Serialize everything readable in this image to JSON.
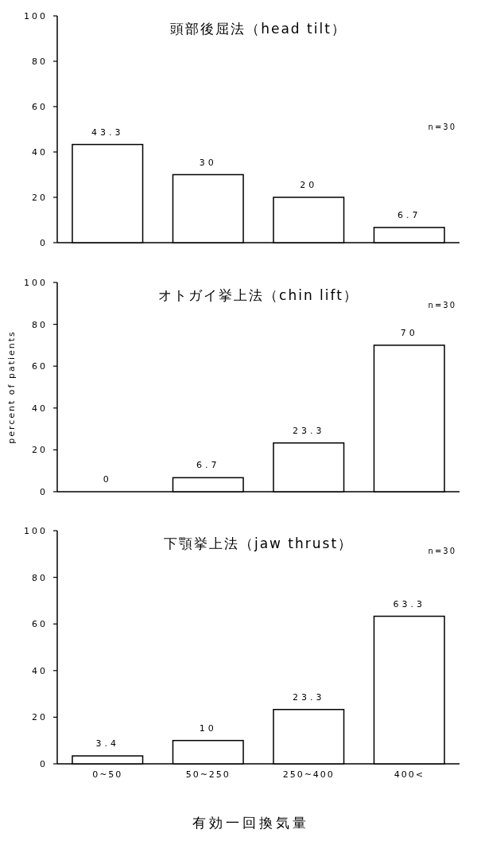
{
  "chart_data": [
    {
      "type": "bar",
      "title": "頭部後屈法（head tilt）",
      "categories": [
        null,
        null,
        null,
        null
      ],
      "values": [
        43.3,
        30,
        20,
        6.7
      ],
      "color": "#ffffff",
      "ylim": [
        0,
        100
      ],
      "yticks": [
        0,
        20,
        40,
        60,
        80,
        100
      ],
      "data_labels": true,
      "annotations": [
        "n=30"
      ],
      "tick_labels": "y"
    },
    {
      "type": "bar",
      "title": "オトガイ挙上法（chin lift）",
      "ylabel": "percent of patients",
      "categories": [
        null,
        null,
        null,
        null
      ],
      "values": [
        0,
        6.7,
        23.3,
        70
      ],
      "color": "#ffffff",
      "ylim": [
        0,
        100
      ],
      "yticks": [
        0,
        20,
        40,
        60,
        80,
        100
      ],
      "data_labels": true,
      "annotations": [
        "n=30"
      ],
      "tick_labels": "y"
    },
    {
      "type": "bar",
      "title": "下顎挙上法（jaw thrust）",
      "xlabel": "有効一回換気量",
      "categories": [
        "0~50",
        "50~250",
        "250~400",
        "400<"
      ],
      "values": [
        3.4,
        10,
        23.3,
        63.3
      ],
      "color": "#ffffff",
      "ylim": [
        0,
        100
      ],
      "yticks": [
        0,
        20,
        40,
        60,
        80,
        100
      ],
      "data_labels": true,
      "annotations": [
        "n=30"
      ]
    }
  ]
}
